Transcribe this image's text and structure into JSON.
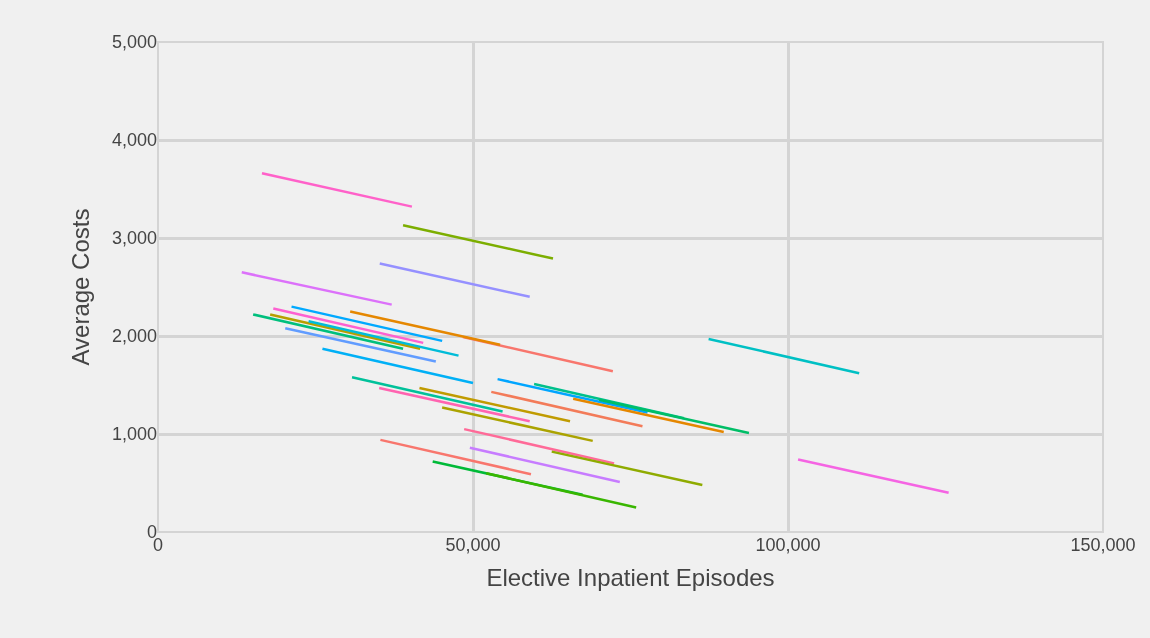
{
  "chart_data": {
    "type": "line",
    "xlabel": "Elective Inpatient Episodes",
    "ylabel": "Average Costs",
    "xlim": [
      0,
      150000
    ],
    "xticks": [
      0,
      {
        "value": 50000,
        "label": "50,000"
      },
      {
        "value": 100000,
        "label": "100,000"
      },
      {
        "value": 150000,
        "label": "150,000"
      }
    ],
    "ylim": [
      0,
      5000
    ],
    "yticks": [
      0,
      {
        "value": 1000,
        "label": "1,000"
      },
      {
        "value": 2000,
        "label": "2,000"
      },
      {
        "value": 3000,
        "label": "3,000"
      },
      {
        "value": 4000,
        "label": "4,000"
      },
      {
        "value": 5000,
        "label": "5,000"
      }
    ],
    "grid": true,
    "marker": "none",
    "line_style": "solid",
    "series": [
      {
        "color": "#ff61c9",
        "x": [
          16500,
          40300
        ],
        "values": [
          3660,
          3320
        ]
      },
      {
        "color": "#7cae00",
        "x": [
          38900,
          62700
        ],
        "values": [
          3130,
          2790
        ]
      },
      {
        "color": "#dc71fa",
        "x": [
          13300,
          37100
        ],
        "values": [
          2650,
          2320
        ]
      },
      {
        "color": "#9590ff",
        "x": [
          35200,
          59000
        ],
        "values": [
          2740,
          2400
        ]
      },
      {
        "color": "#f8766d",
        "x": [
          48400,
          72200
        ],
        "values": [
          1990,
          1640
        ]
      },
      {
        "color": "#e58700",
        "x": [
          30500,
          54300
        ],
        "values": [
          2250,
          1910
        ]
      },
      {
        "color": "#fd61d1",
        "x": [
          18300,
          42100
        ],
        "values": [
          2280,
          1930
        ]
      },
      {
        "color": "#00a9ff",
        "x": [
          21200,
          45100
        ],
        "values": [
          2300,
          1950
        ]
      },
      {
        "color": "#00bf7d",
        "x": [
          15100,
          38900
        ],
        "values": [
          2220,
          1870
        ]
      },
      {
        "color": "#b79f00",
        "x": [
          17800,
          41600
        ],
        "values": [
          2220,
          1870
        ]
      },
      {
        "color": "#00bcd8",
        "x": [
          23900,
          47700
        ],
        "values": [
          2150,
          1800
        ]
      },
      {
        "color": "#619cff",
        "x": [
          20200,
          44100
        ],
        "values": [
          2080,
          1740
        ]
      },
      {
        "color": "#00b0f6",
        "x": [
          26100,
          50000
        ],
        "values": [
          1870,
          1520
        ]
      },
      {
        "color": "#00c19a",
        "x": [
          30800,
          54700
        ],
        "values": [
          1580,
          1230
        ]
      },
      {
        "color": "#ff64b0",
        "x": [
          35100,
          59000
        ],
        "values": [
          1470,
          1130
        ]
      },
      {
        "color": "#c09b00",
        "x": [
          41500,
          65400
        ],
        "values": [
          1470,
          1130
        ]
      },
      {
        "color": "#aba300",
        "x": [
          45100,
          69000
        ],
        "values": [
          1270,
          930
        ]
      },
      {
        "color": "#ff6a98",
        "x": [
          48600,
          72400
        ],
        "values": [
          1050,
          700
        ]
      },
      {
        "color": "#f8766d",
        "x": [
          35300,
          59200
        ],
        "values": [
          940,
          590
        ]
      },
      {
        "color": "#c77cff",
        "x": [
          49500,
          73300
        ],
        "values": [
          860,
          510
        ]
      },
      {
        "color": "#00ba38",
        "x": [
          43600,
          67400
        ],
        "values": [
          720,
          380
        ]
      },
      {
        "color": "#39b600",
        "x": [
          52100,
          75900
        ],
        "values": [
          600,
          250
        ]
      },
      {
        "color": "#00a5ff",
        "x": [
          53900,
          77700
        ],
        "values": [
          1560,
          1220
        ]
      },
      {
        "color": "#00c08b",
        "x": [
          59700,
          83500
        ],
        "values": [
          1510,
          1160
        ]
      },
      {
        "color": "#00be67",
        "x": [
          70000,
          93800
        ],
        "values": [
          1350,
          1010
        ]
      },
      {
        "color": "#f37b59",
        "x": [
          52900,
          76900
        ],
        "values": [
          1430,
          1080
        ]
      },
      {
        "color": "#e58700",
        "x": [
          65900,
          89800
        ],
        "values": [
          1360,
          1020
        ]
      },
      {
        "color": "#8fab00",
        "x": [
          62500,
          86400
        ],
        "values": [
          820,
          480
        ]
      },
      {
        "color": "#00c0c4",
        "x": [
          87400,
          111300
        ],
        "values": [
          1970,
          1620
        ]
      },
      {
        "color": "#f564e3",
        "x": [
          101600,
          125500
        ],
        "values": [
          740,
          400
        ]
      }
    ]
  }
}
